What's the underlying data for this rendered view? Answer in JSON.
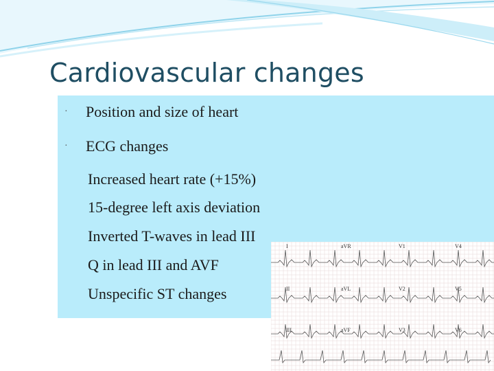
{
  "slide": {
    "title": "Cardiovascular changes",
    "bullets": [
      "Position and size of heart",
      "ECG changes"
    ],
    "sub_items": [
      "Increased heart rate (+15%)",
      "15-degree left axis deviation",
      "Inverted T-waves in lead III",
      "Q in lead III and AVF",
      "Unspecific ST changes"
    ],
    "ecg_leads": [
      [
        "I",
        "aVR",
        "V1",
        "V4"
      ],
      [
        "II",
        "aVL",
        "V2",
        "V5"
      ],
      [
        "III",
        "aVF",
        "V3",
        "V6"
      ]
    ]
  },
  "colors": {
    "title": "#1f4e63",
    "content_box": "#b9ecfb",
    "swoosh": "#7fc9e3"
  }
}
